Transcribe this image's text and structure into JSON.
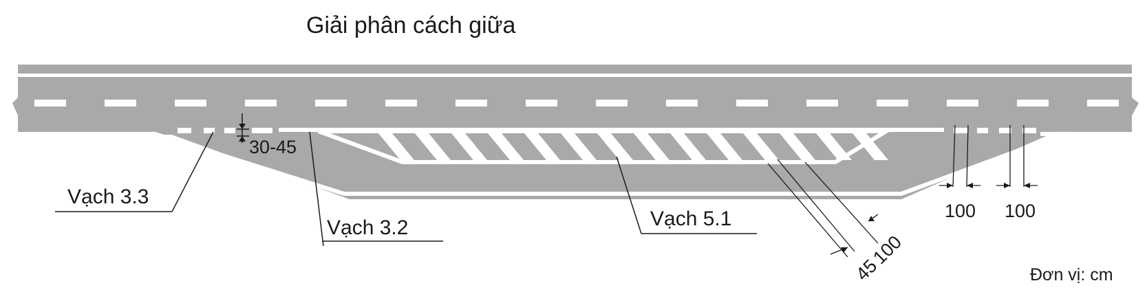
{
  "title": "Giải phân cách giữa",
  "labels": {
    "marking_3_3": "Vạch 3.3",
    "marking_3_2": "Vạch 3.2",
    "marking_5_1": "Vạch 5.1"
  },
  "dimensions": {
    "gap_width": "30-45",
    "stripe_width": "45",
    "stripe_spacing": "100",
    "dash_length_1": "100",
    "dash_length_2": "100"
  },
  "unit_note": "Đơn vị: cm",
  "colors": {
    "road": "#a9a9a9",
    "marking": "#ffffff",
    "leader": "#1a1a1a"
  }
}
